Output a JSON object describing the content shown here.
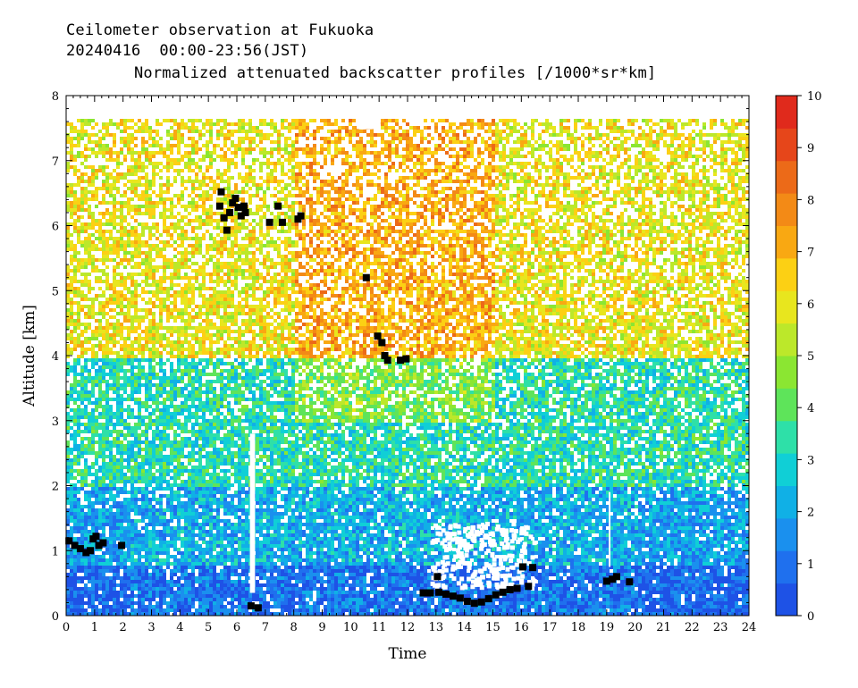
{
  "header": {
    "line1": "Ceilometer observation at Fukuoka",
    "line2": "20240416  00:00-23:56(JST)",
    "line3": "Normalized attenuated backscatter profiles [/1000*sr*km]"
  },
  "chart_data": {
    "type": "heatmap",
    "title": "Normalized attenuated backscatter profiles [/1000*sr*km]",
    "xlabel": "Time",
    "ylabel": "Altitude [km]",
    "xlim": [
      0,
      24
    ],
    "ylim": [
      0,
      8
    ],
    "x_ticks": [
      "0",
      "1",
      "2",
      "3",
      "4",
      "5",
      "6",
      "7",
      "8",
      "9",
      "10",
      "11",
      "12",
      "13",
      "14",
      "15",
      "16",
      "17",
      "18",
      "19",
      "20",
      "21",
      "22",
      "23",
      "24"
    ],
    "y_ticks": [
      "0",
      "1",
      "2",
      "3",
      "4",
      "5",
      "6",
      "7",
      "8"
    ],
    "data_top_km": 7.68,
    "colorbar": {
      "min": 0,
      "max": 10,
      "ticks": [
        "0",
        "1",
        "2",
        "3",
        "4",
        "5",
        "6",
        "7",
        "8",
        "9",
        "10"
      ],
      "colors": [
        "#1e52e6",
        "#1f70ee",
        "#1a90ee",
        "#10b0e6",
        "#10cfd6",
        "#2ee0a8",
        "#5ee45a",
        "#8be632",
        "#bce82a",
        "#e8e61e",
        "#fcd014",
        "#f9a812",
        "#f38a16",
        "#ec6a18",
        "#e6461a",
        "#e02a1c"
      ]
    },
    "background_layers": [
      {
        "name": "surface",
        "alt_range_km": [
          0,
          0.8
        ],
        "value": 1.0
      },
      {
        "name": "boundary-layer",
        "alt_range_km": [
          0.8,
          2.0
        ],
        "value": 2.2
      },
      {
        "name": "lower-free-troposphere",
        "alt_range_km": [
          2.0,
          4.0
        ],
        "value": 3.3
      },
      {
        "name": "upper",
        "alt_range_km": [
          4.0,
          7.68
        ],
        "value": 6.0
      }
    ],
    "cloud_points": [
      {
        "x": 0.1,
        "y": 1.15
      },
      {
        "x": 0.3,
        "y": 1.08
      },
      {
        "x": 0.5,
        "y": 1.03
      },
      {
        "x": 0.7,
        "y": 0.97
      },
      {
        "x": 0.85,
        "y": 1.0
      },
      {
        "x": 0.95,
        "y": 1.18
      },
      {
        "x": 1.05,
        "y": 1.22
      },
      {
        "x": 1.15,
        "y": 1.08
      },
      {
        "x": 1.3,
        "y": 1.12
      },
      {
        "x": 1.95,
        "y": 1.08
      },
      {
        "x": 5.45,
        "y": 6.52
      },
      {
        "x": 5.4,
        "y": 6.3
      },
      {
        "x": 5.55,
        "y": 6.12
      },
      {
        "x": 5.65,
        "y": 5.93
      },
      {
        "x": 5.75,
        "y": 6.2
      },
      {
        "x": 5.85,
        "y": 6.35
      },
      {
        "x": 5.95,
        "y": 6.42
      },
      {
        "x": 6.05,
        "y": 6.28
      },
      {
        "x": 6.15,
        "y": 6.15
      },
      {
        "x": 6.25,
        "y": 6.3
      },
      {
        "x": 6.3,
        "y": 6.2
      },
      {
        "x": 7.15,
        "y": 6.05
      },
      {
        "x": 7.45,
        "y": 6.3
      },
      {
        "x": 7.6,
        "y": 6.05
      },
      {
        "x": 8.15,
        "y": 6.1
      },
      {
        "x": 8.25,
        "y": 6.15
      },
      {
        "x": 10.55,
        "y": 5.2
      },
      {
        "x": 10.95,
        "y": 4.3
      },
      {
        "x": 11.1,
        "y": 4.2
      },
      {
        "x": 11.2,
        "y": 4.0
      },
      {
        "x": 11.3,
        "y": 3.93
      },
      {
        "x": 11.75,
        "y": 3.93
      },
      {
        "x": 11.95,
        "y": 3.95
      },
      {
        "x": 6.5,
        "y": 0.15
      },
      {
        "x": 6.75,
        "y": 0.12
      },
      {
        "x": 12.55,
        "y": 0.35
      },
      {
        "x": 12.8,
        "y": 0.35
      },
      {
        "x": 13.05,
        "y": 0.6
      },
      {
        "x": 13.1,
        "y": 0.36
      },
      {
        "x": 13.35,
        "y": 0.33
      },
      {
        "x": 13.6,
        "y": 0.3
      },
      {
        "x": 13.85,
        "y": 0.27
      },
      {
        "x": 14.1,
        "y": 0.22
      },
      {
        "x": 14.35,
        "y": 0.19
      },
      {
        "x": 14.6,
        "y": 0.21
      },
      {
        "x": 14.85,
        "y": 0.26
      },
      {
        "x": 15.1,
        "y": 0.32
      },
      {
        "x": 15.35,
        "y": 0.36
      },
      {
        "x": 15.6,
        "y": 0.4
      },
      {
        "x": 15.85,
        "y": 0.42
      },
      {
        "x": 16.05,
        "y": 0.75
      },
      {
        "x": 16.25,
        "y": 0.45
      },
      {
        "x": 16.4,
        "y": 0.74
      },
      {
        "x": 19.0,
        "y": 0.53
      },
      {
        "x": 19.2,
        "y": 0.56
      },
      {
        "x": 19.35,
        "y": 0.6
      },
      {
        "x": 19.8,
        "y": 0.52
      }
    ],
    "no_signal_columns": [
      {
        "x": 6.55,
        "y_from": 0.35,
        "y_to": 2.8,
        "width_h": 0.18
      },
      {
        "x": 19.1,
        "y_from": 0.75,
        "y_to": 1.9,
        "width_h": 0.06
      }
    ],
    "no_signal_patches": [
      {
        "x_range": [
          12.8,
          16.4
        ],
        "y_range": [
          0.45,
          1.45
        ]
      },
      {
        "x_range": [
          10.2,
          10.9
        ],
        "y_range": [
          7.55,
          7.68
        ]
      }
    ]
  }
}
